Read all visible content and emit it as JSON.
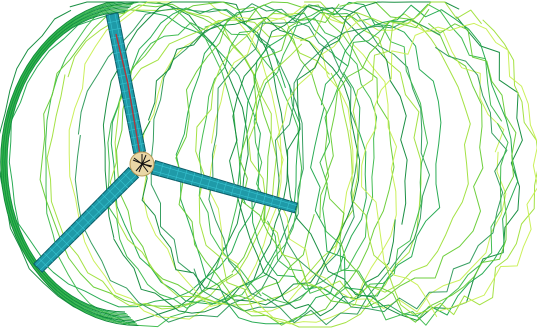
{
  "scene": {
    "subject": "wind-turbine-rotor-wake",
    "background_color": "#ffffff",
    "blade_color": "#1f9aa8",
    "blade_edge_color": "#0b5e68",
    "blade_mesh_color": "#37c2cf",
    "spar_color": "#b0383c",
    "hub_color": "#e9d7a6",
    "hub_edge_color": "#111111",
    "blade_count": 3,
    "wake_palette": [
      "#0f8a3a",
      "#1fa84c",
      "#3ab94a",
      "#66cc33",
      "#9fe03a",
      "#c8ef52",
      "#2d9a5a"
    ],
    "wake_ring_count": 34
  }
}
